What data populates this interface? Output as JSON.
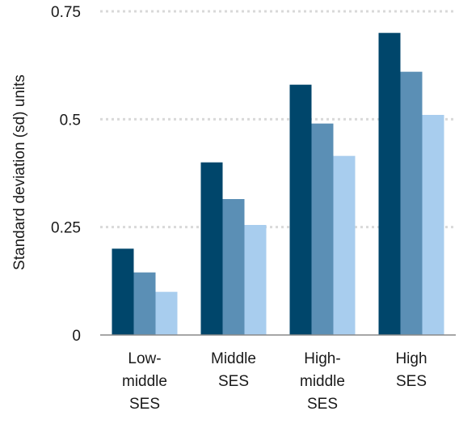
{
  "chart_data": {
    "type": "bar",
    "title": "",
    "xlabel": "",
    "ylabel": "Standard deviation (sd) units",
    "ylim": [
      0,
      0.75
    ],
    "y_ticks": [
      "0",
      "0.25",
      "0.5",
      "0.75"
    ],
    "y_tick_values": [
      0,
      0.25,
      0.5,
      0.75
    ],
    "grid": true,
    "legend": "none",
    "categories": [
      [
        "Low-",
        "middle",
        "SES"
      ],
      [
        "Middle",
        "SES"
      ],
      [
        "High-",
        "middle",
        "SES"
      ],
      [
        "High",
        "SES"
      ]
    ],
    "series": [
      {
        "color": "#00466b",
        "values": [
          0.2,
          0.4,
          0.58,
          0.7
        ]
      },
      {
        "color": "#5b8fb5",
        "values": [
          0.145,
          0.315,
          0.49,
          0.61
        ]
      },
      {
        "color": "#a8cdee",
        "values": [
          0.1,
          0.255,
          0.415,
          0.51
        ]
      }
    ],
    "colors": {
      "axis": "#888888",
      "grid": "#d9d9d9"
    }
  }
}
